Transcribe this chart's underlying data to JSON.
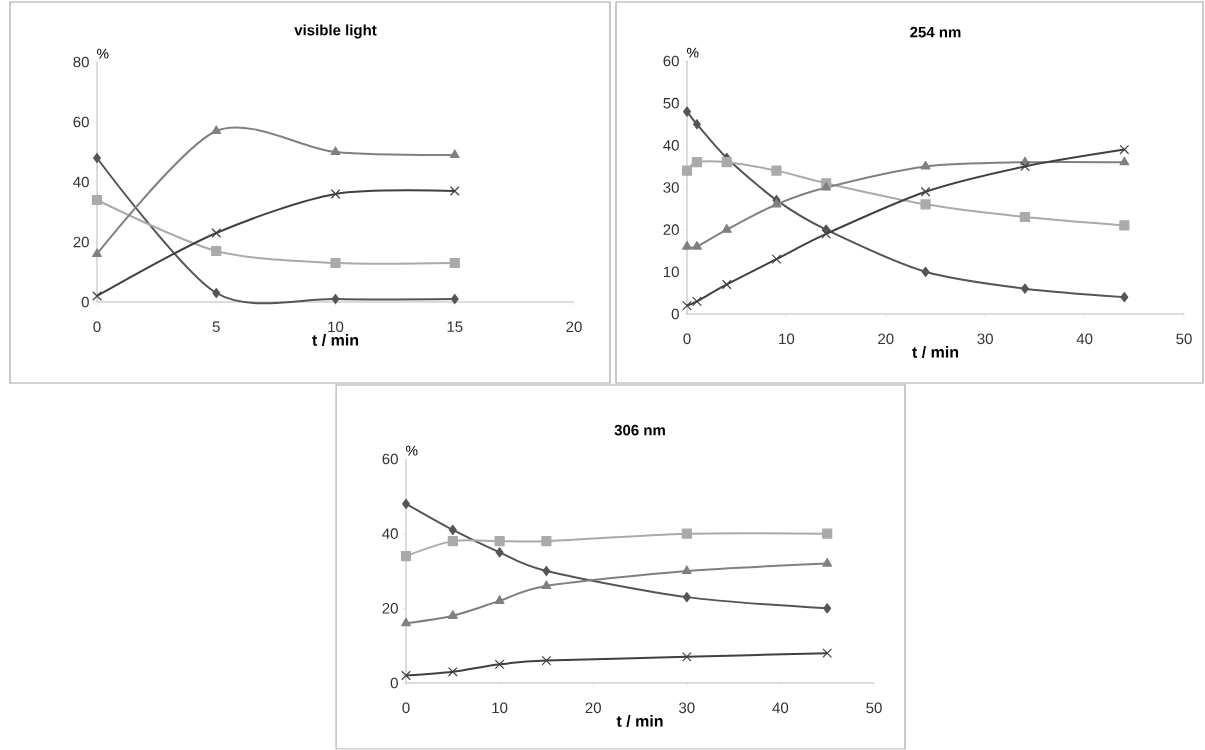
{
  "chart_data": [
    {
      "type": "line",
      "title": "visible light",
      "xlabel": "t / min",
      "ylabel": "%",
      "xlim": [
        0,
        20
      ],
      "ylim": [
        0,
        80
      ],
      "xticks": [
        0,
        5,
        10,
        15,
        20
      ],
      "yticks": [
        0,
        20,
        40,
        60,
        80
      ],
      "line_style": "solid",
      "x": [
        0,
        5,
        10,
        15
      ],
      "series": [
        {
          "color": "#555555",
          "marker": "diamond",
          "values": [
            48,
            3,
            1,
            1
          ]
        },
        {
          "color": "#aaaaaa",
          "marker": "square",
          "values": [
            34,
            17,
            13,
            13
          ]
        },
        {
          "color": "#808080",
          "marker": "triangle",
          "values": [
            16,
            57,
            50,
            49
          ]
        },
        {
          "color": "#404040",
          "marker": "cross",
          "values": [
            2,
            23,
            36,
            37
          ]
        }
      ]
    },
    {
      "type": "line",
      "title": "254 nm",
      "xlabel": "t / min",
      "ylabel": "%",
      "xlim": [
        0,
        50
      ],
      "ylim": [
        0,
        60
      ],
      "xticks": [
        0,
        10,
        20,
        30,
        40,
        50
      ],
      "yticks": [
        0,
        10,
        20,
        30,
        40,
        50,
        60
      ],
      "line_style": "solid",
      "x": [
        0,
        1,
        4,
        9,
        14,
        24,
        34,
        44
      ],
      "series": [
        {
          "color": "#555555",
          "marker": "diamond",
          "values": [
            48,
            45,
            37,
            27,
            20,
            10,
            6,
            4
          ]
        },
        {
          "color": "#aaaaaa",
          "marker": "square",
          "values": [
            34,
            36,
            36,
            34,
            31,
            26,
            23,
            21
          ]
        },
        {
          "color": "#808080",
          "marker": "triangle",
          "values": [
            16,
            16,
            20,
            26,
            30,
            35,
            36,
            36
          ]
        },
        {
          "color": "#404040",
          "marker": "cross",
          "values": [
            2,
            3,
            7,
            13,
            19,
            29,
            35,
            39
          ]
        }
      ]
    },
    {
      "type": "line",
      "title": "306 nm",
      "xlabel": "t / min",
      "ylabel": "%",
      "xlim": [
        0,
        50
      ],
      "ylim": [
        0,
        60
      ],
      "xticks": [
        0,
        10,
        20,
        30,
        40,
        50
      ],
      "yticks": [
        0,
        20,
        40,
        60
      ],
      "line_style": "solid",
      "x": [
        0,
        5,
        10,
        15,
        30,
        45
      ],
      "series": [
        {
          "color": "#555555",
          "marker": "diamond",
          "values": [
            48,
            41,
            35,
            30,
            23,
            20
          ]
        },
        {
          "color": "#aaaaaa",
          "marker": "square",
          "values": [
            34,
            38,
            38,
            38,
            40,
            40
          ]
        },
        {
          "color": "#808080",
          "marker": "triangle",
          "values": [
            16,
            18,
            22,
            26,
            30,
            32
          ]
        },
        {
          "color": "#404040",
          "marker": "cross",
          "values": [
            2,
            3,
            5,
            6,
            7,
            8
          ]
        }
      ]
    }
  ]
}
